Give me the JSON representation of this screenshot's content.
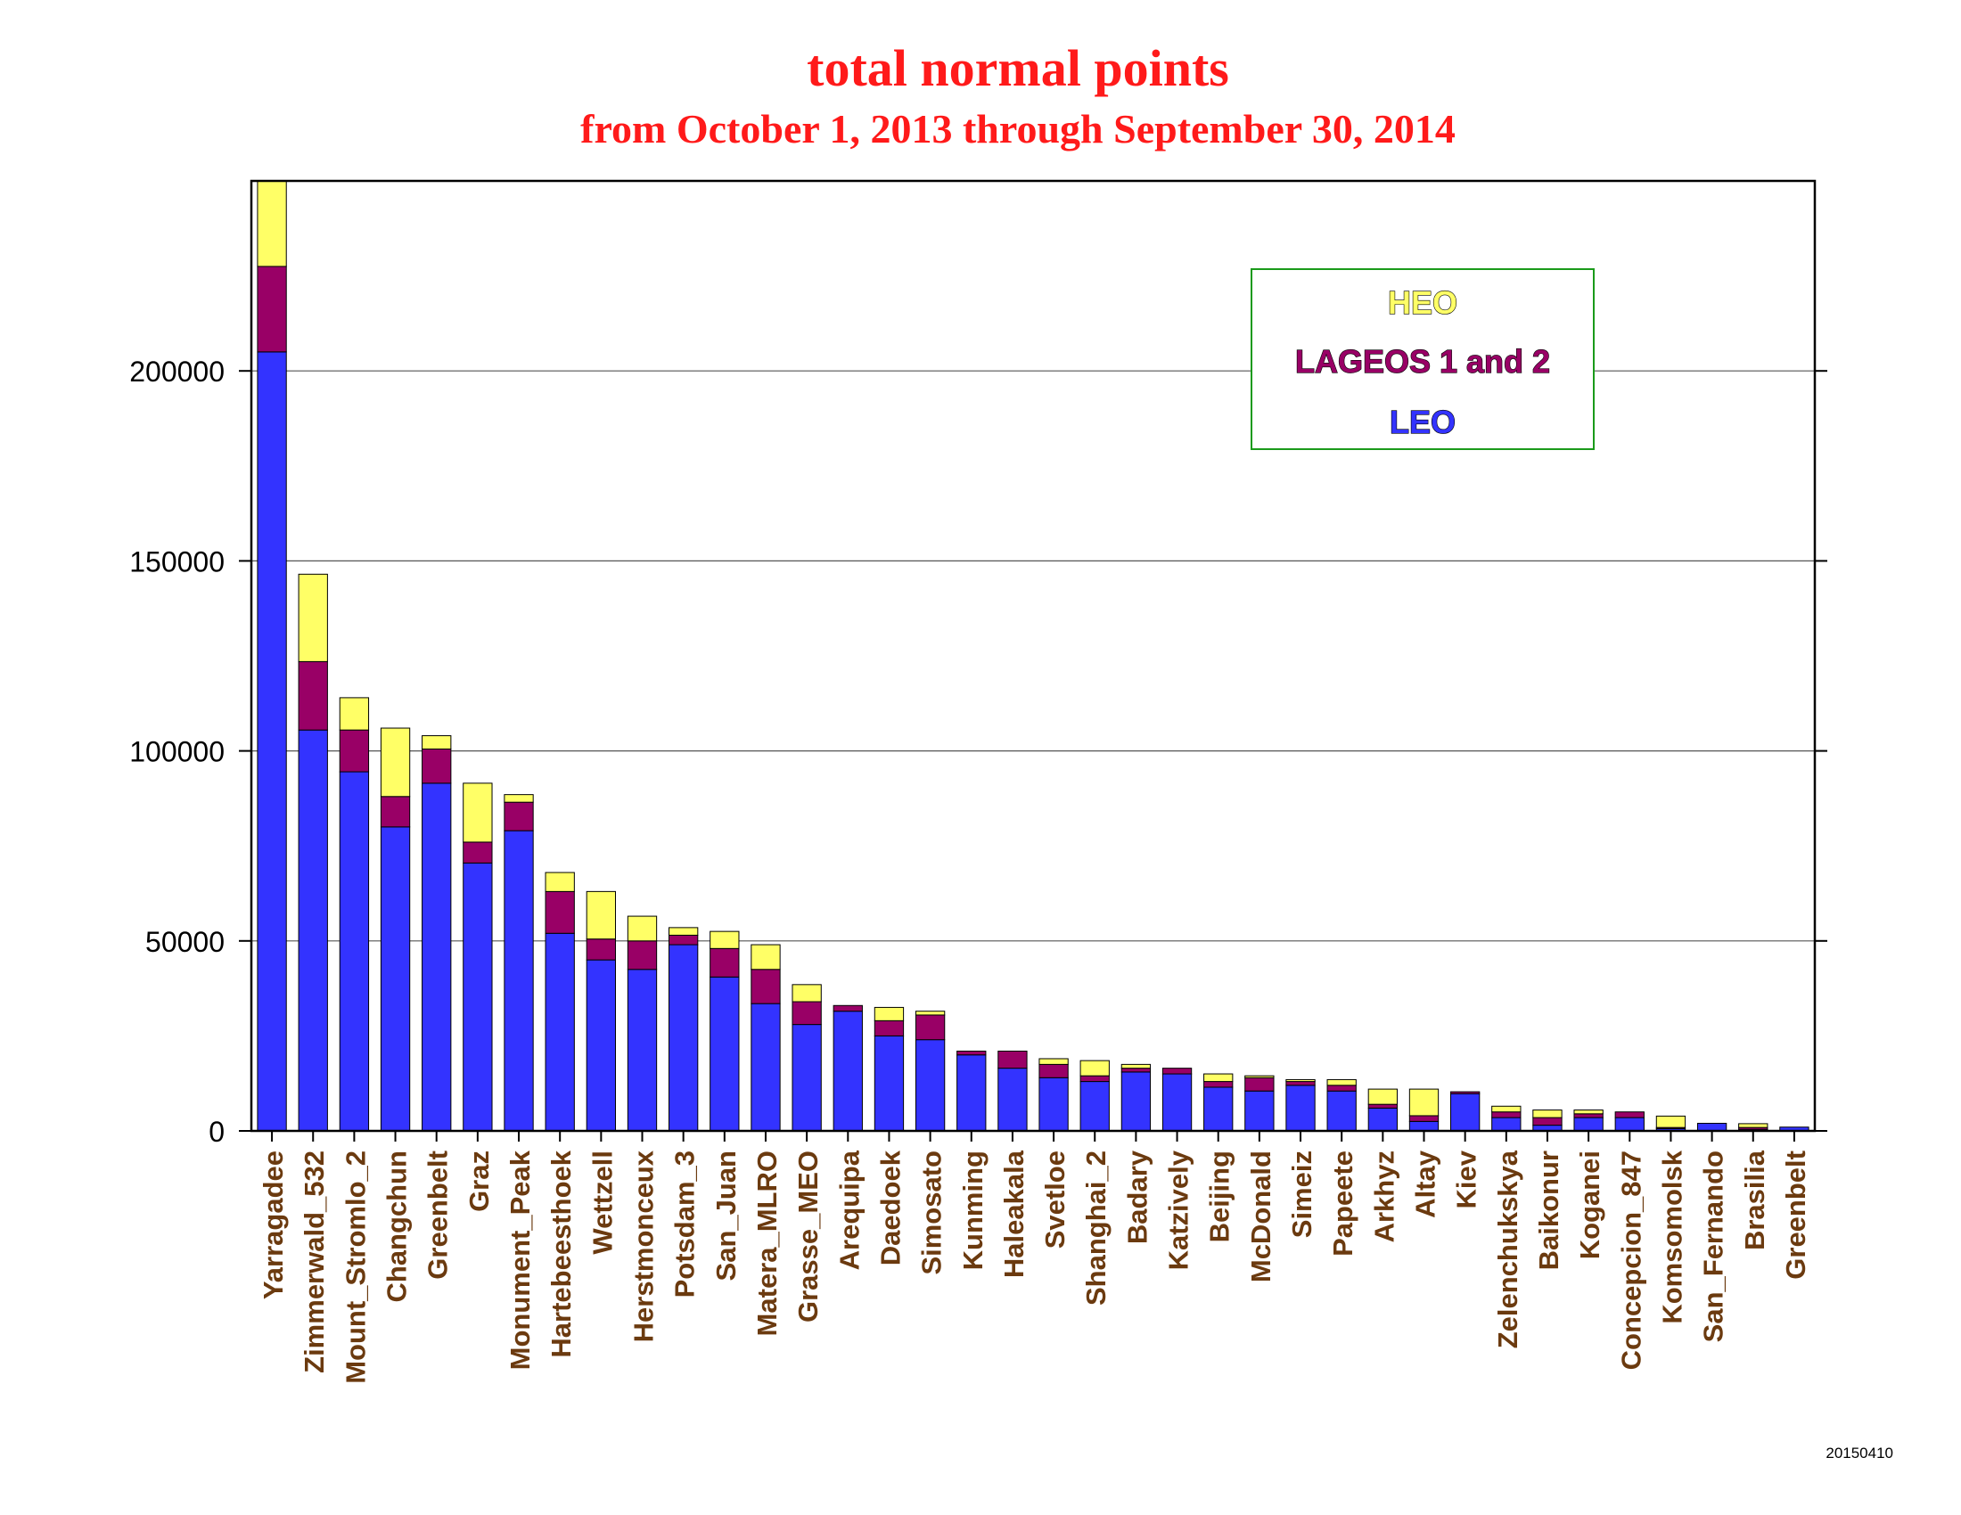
{
  "chart_data": {
    "type": "bar",
    "stacked": true,
    "title": "total normal points",
    "subtitle": "from October 1, 2013 through  September 30, 2014",
    "ylim": [
      0,
      250000
    ],
    "yticks": [
      0,
      50000,
      100000,
      150000,
      200000
    ],
    "grid": true,
    "legend_position": "top-right",
    "categories": [
      "Yarragadee",
      "Zimmerwald_532",
      "Mount_Stromlo_2",
      "Changchun",
      "Greenbelt",
      "Graz",
      "Monument_Peak",
      "Hartebeesthoek",
      "Wettzell",
      "Herstmonceux",
      "Potsdam_3",
      "San_Juan",
      "Matera_MLRO",
      "Grasse_MEO",
      "Arequipa",
      "Daedoek",
      "Simosato",
      "Kunming",
      "Haleakala",
      "Svetloe",
      "Shanghai_2",
      "Badary",
      "Katzively",
      "Beijing",
      "McDonald",
      "Simeiz",
      "Papeete",
      "Arkhyz",
      "Altay",
      "Kiev",
      "Zelenchukskya",
      "Baikonur",
      "Koganei",
      "Concepcion_847",
      "Komsomolsk",
      "San_Fernando",
      "Brasilia",
      "Greenbelt"
    ],
    "series": [
      {
        "name": "LEO",
        "color": "#3333ff",
        "values": [
          205000,
          105500,
          94500,
          80000,
          91500,
          70500,
          79000,
          52000,
          45000,
          42500,
          49000,
          40500,
          33500,
          28000,
          31500,
          25000,
          24000,
          20000,
          16500,
          14000,
          13000,
          15500,
          15000,
          11500,
          10500,
          12000,
          10500,
          6000,
          2500,
          9800,
          3500,
          1500,
          3500,
          3500,
          600,
          2000,
          400,
          1000
        ]
      },
      {
        "name": "LAGEOS 1 and 2",
        "color": "#990066",
        "values": [
          22500,
          18000,
          11000,
          8000,
          9000,
          5500,
          7500,
          11000,
          5500,
          7500,
          2500,
          7500,
          9000,
          6000,
          1500,
          4000,
          6500,
          1000,
          4500,
          3500,
          1500,
          1000,
          1500,
          1500,
          3500,
          1000,
          1500,
          1000,
          1500,
          500,
          1500,
          2000,
          1000,
          1500,
          300,
          0,
          500,
          0
        ]
      },
      {
        "name": "HEO",
        "color": "#ffff66",
        "values": [
          22500,
          23000,
          8500,
          18000,
          3500,
          15500,
          2000,
          5000,
          12500,
          6500,
          2000,
          4500,
          6500,
          4500,
          0,
          3500,
          1000,
          0,
          0,
          1500,
          4000,
          1000,
          0,
          2000,
          500,
          500,
          1500,
          4000,
          7000,
          0,
          1500,
          2000,
          1000,
          0,
          3000,
          0,
          1000,
          0
        ]
      }
    ],
    "stamp": "20150410"
  }
}
